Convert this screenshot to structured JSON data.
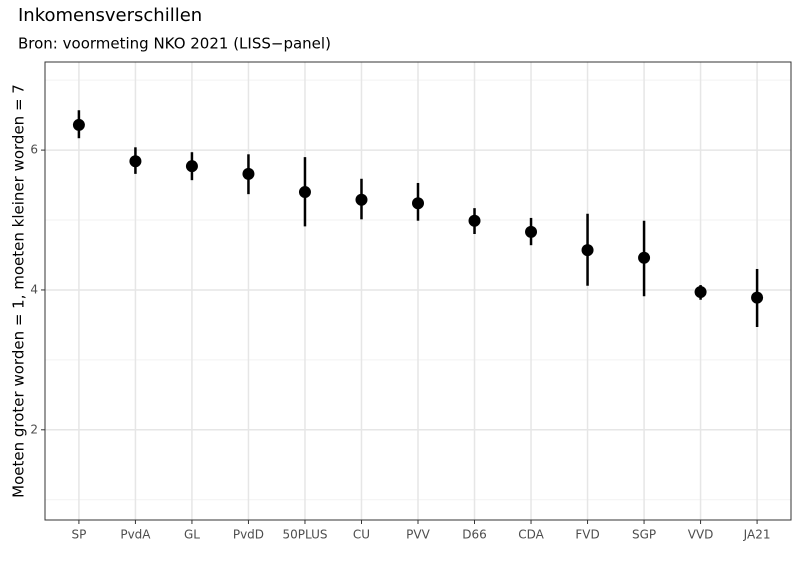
{
  "chart_data": {
    "type": "pointrange",
    "title": "Inkomensverschillen",
    "subtitle": "Bron: voormeting NKO 2021 (LISS−panel)",
    "y_label": "Moeten groter worden = 1, moeten kleiner worden = 7",
    "categories": [
      "SP",
      "PvdA",
      "GL",
      "PvdD",
      "50PLUS",
      "CU",
      "PVV",
      "D66",
      "CDA",
      "FVD",
      "SGP",
      "VVD",
      "JA21"
    ],
    "values": [
      6.36,
      5.84,
      5.77,
      5.66,
      5.4,
      5.29,
      5.24,
      4.99,
      4.83,
      4.57,
      4.46,
      3.97,
      3.89
    ],
    "lower": [
      6.17,
      5.66,
      5.57,
      5.37,
      4.91,
      5.01,
      4.99,
      4.8,
      4.64,
      4.06,
      3.91,
      3.86,
      3.47
    ],
    "upper": [
      6.57,
      6.04,
      5.97,
      5.94,
      5.9,
      5.59,
      5.53,
      5.17,
      5.03,
      5.09,
      4.99,
      4.07,
      4.3
    ],
    "color": "#000000",
    "ylim": [
      0.71,
      7.26
    ],
    "yticks": [
      2,
      4,
      6
    ],
    "minor_yticks": [
      1,
      3,
      5,
      7
    ],
    "grid": true
  }
}
